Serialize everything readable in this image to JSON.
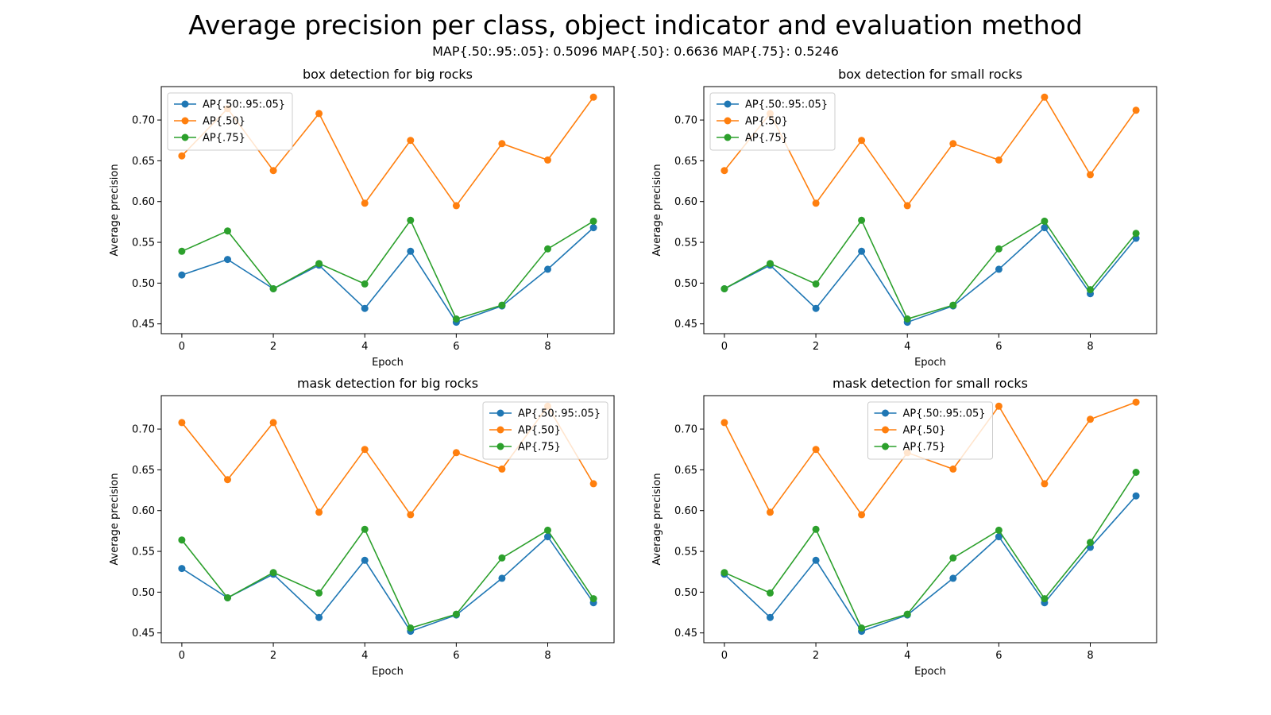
{
  "figure": {
    "title": "Average precision per class, object indicator and evaluation method",
    "subtitle": "MAP{.50:.95:.05}: 0.5096  MAP{.50}: 0.6636  MAP{.75}: 0.5246"
  },
  "colors": {
    "series1": "#1f77b4",
    "series2": "#ff7f0e",
    "series3": "#2ca02c"
  },
  "chart_data": [
    {
      "type": "line",
      "title": "box detection for big rocks",
      "xlabel": "Epoch",
      "ylabel": "Average precision",
      "x": [
        0,
        1,
        2,
        3,
        4,
        5,
        6,
        7,
        8,
        9
      ],
      "xticks": [
        0,
        2,
        4,
        6,
        8
      ],
      "yticks": [
        0.45,
        0.5,
        0.55,
        0.6,
        0.65,
        0.7
      ],
      "ylim": [
        0.438,
        0.741
      ],
      "legend_position": "upper left",
      "series": [
        {
          "name": "AP{.50:.95:.05}",
          "values": [
            0.51,
            0.529,
            0.493,
            0.522,
            0.469,
            0.539,
            0.452,
            0.472,
            0.517,
            0.568
          ]
        },
        {
          "name": "AP{.50}",
          "values": [
            0.656,
            0.714,
            0.638,
            0.708,
            0.598,
            0.675,
            0.595,
            0.671,
            0.651,
            0.728
          ]
        },
        {
          "name": "AP{.75}",
          "values": [
            0.539,
            0.564,
            0.493,
            0.524,
            0.499,
            0.577,
            0.456,
            0.473,
            0.542,
            0.576
          ]
        }
      ]
    },
    {
      "type": "line",
      "title": "box detection for small rocks",
      "xlabel": "Epoch",
      "ylabel": "Average precision",
      "x": [
        0,
        1,
        2,
        3,
        4,
        5,
        6,
        7,
        8,
        9
      ],
      "xticks": [
        0,
        2,
        4,
        6,
        8
      ],
      "yticks": [
        0.45,
        0.5,
        0.55,
        0.6,
        0.65,
        0.7
      ],
      "ylim": [
        0.438,
        0.741
      ],
      "legend_position": "upper left",
      "series": [
        {
          "name": "AP{.50:.95:.05}",
          "values": [
            0.493,
            0.522,
            0.469,
            0.539,
            0.452,
            0.472,
            0.517,
            0.568,
            0.487,
            0.555
          ]
        },
        {
          "name": "AP{.50}",
          "values": [
            0.638,
            0.708,
            0.598,
            0.675,
            0.595,
            0.671,
            0.651,
            0.728,
            0.633,
            0.712
          ]
        },
        {
          "name": "AP{.75}",
          "values": [
            0.493,
            0.524,
            0.499,
            0.577,
            0.456,
            0.473,
            0.542,
            0.576,
            0.492,
            0.561
          ]
        }
      ]
    },
    {
      "type": "line",
      "title": "mask detection for big rocks",
      "xlabel": "Epoch",
      "ylabel": "Average precision",
      "x": [
        0,
        1,
        2,
        3,
        4,
        5,
        6,
        7,
        8,
        9
      ],
      "xticks": [
        0,
        2,
        4,
        6,
        8
      ],
      "yticks": [
        0.45,
        0.5,
        0.55,
        0.6,
        0.65,
        0.7
      ],
      "ylim": [
        0.438,
        0.741
      ],
      "legend_position": "upper right",
      "series": [
        {
          "name": "AP{.50:.95:.05}",
          "values": [
            0.529,
            0.493,
            0.522,
            0.469,
            0.539,
            0.452,
            0.472,
            0.517,
            0.568,
            0.487
          ]
        },
        {
          "name": "AP{.50}",
          "values": [
            0.708,
            0.638,
            0.708,
            0.598,
            0.675,
            0.595,
            0.671,
            0.651,
            0.728,
            0.633
          ]
        },
        {
          "name": "AP{.75}",
          "values": [
            0.564,
            0.493,
            0.524,
            0.499,
            0.577,
            0.456,
            0.473,
            0.542,
            0.576,
            0.492
          ]
        }
      ]
    },
    {
      "type": "line",
      "title": "mask detection for small rocks",
      "xlabel": "Epoch",
      "ylabel": "Average precision",
      "x": [
        0,
        1,
        2,
        3,
        4,
        5,
        6,
        7,
        8,
        9
      ],
      "xticks": [
        0,
        2,
        4,
        6,
        8
      ],
      "yticks": [
        0.45,
        0.5,
        0.55,
        0.6,
        0.65,
        0.7
      ],
      "ylim": [
        0.438,
        0.741
      ],
      "legend_position": "upper center",
      "series": [
        {
          "name": "AP{.50:.95:.05}",
          "values": [
            0.522,
            0.469,
            0.539,
            0.452,
            0.472,
            0.517,
            0.568,
            0.487,
            0.555,
            0.618
          ]
        },
        {
          "name": "AP{.50}",
          "values": [
            0.708,
            0.598,
            0.675,
            0.595,
            0.671,
            0.651,
            0.728,
            0.633,
            0.712,
            0.733
          ]
        },
        {
          "name": "AP{.75}",
          "values": [
            0.524,
            0.499,
            0.577,
            0.456,
            0.473,
            0.542,
            0.576,
            0.492,
            0.561,
            0.647
          ]
        }
      ]
    }
  ]
}
